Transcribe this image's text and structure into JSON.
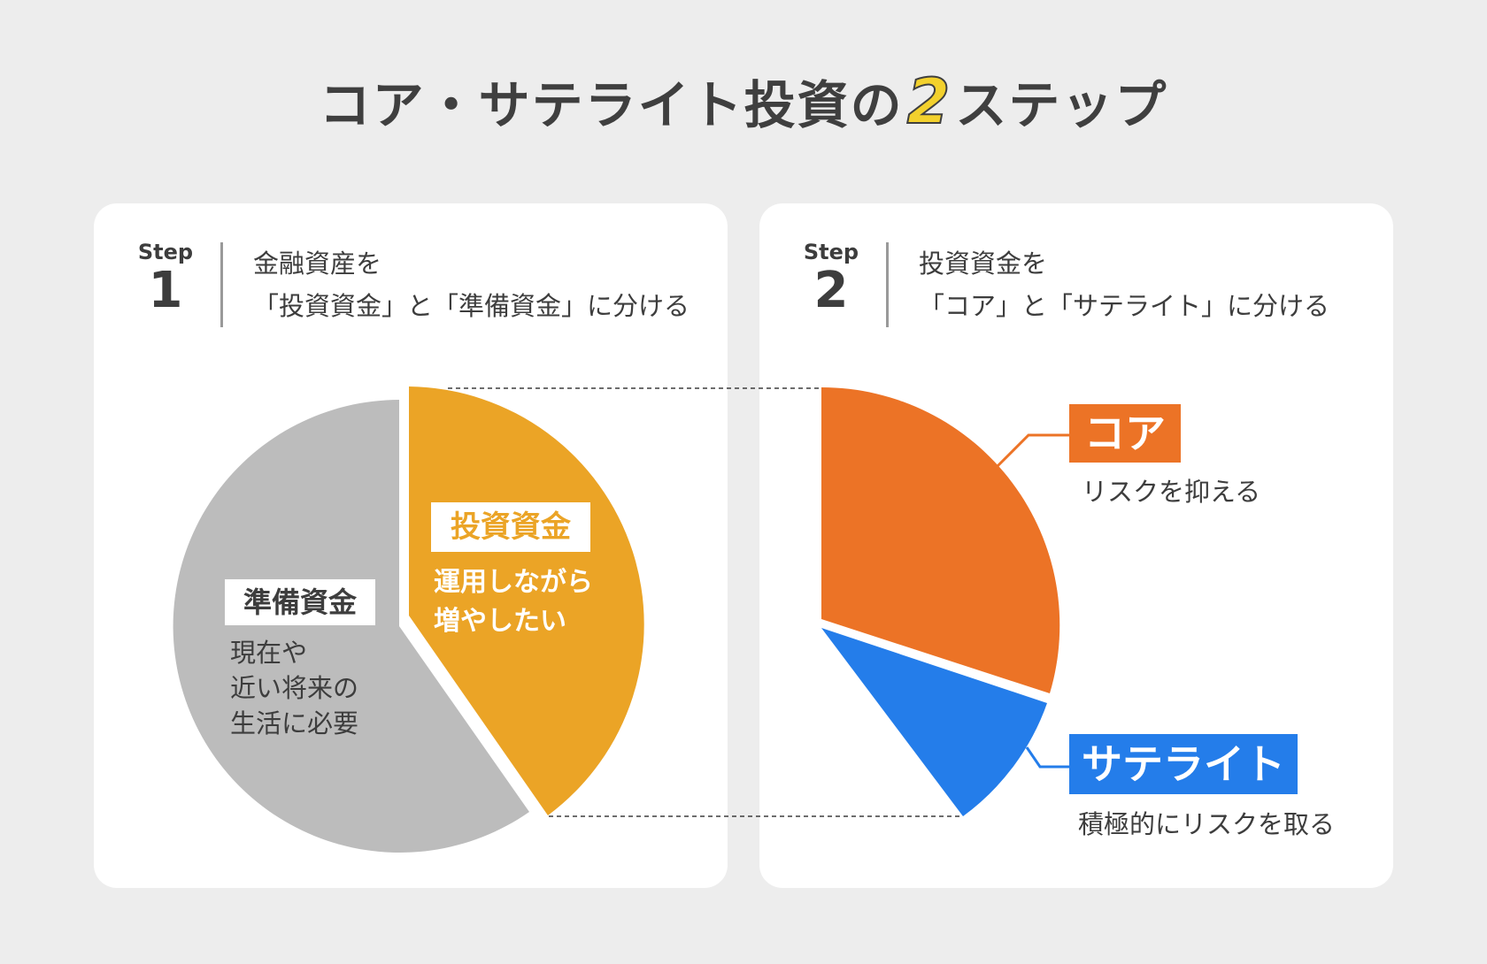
{
  "title": {
    "prefix": "コア・サテライト投資の",
    "number": "2",
    "suffix": "ステップ"
  },
  "step1": {
    "step_label": "Step",
    "step_number": "1",
    "desc_line1": "金融資産を",
    "desc_line2": "「投資資金」と「準備資金」に分ける",
    "invest": {
      "label": "投資資金",
      "desc_line1": "運用しながら",
      "desc_line2": "増やしたい"
    },
    "reserve": {
      "label": "準備資金",
      "desc_line1": "現在や",
      "desc_line2": "近い将来の",
      "desc_line3": "生活に必要"
    }
  },
  "step2": {
    "step_label": "Step",
    "step_number": "2",
    "desc_line1": "投資資金を",
    "desc_line2": "「コア」と「サテライト」に分ける",
    "core": {
      "label": "コア",
      "desc": "リスクを抑える"
    },
    "satellite": {
      "label": "サテライト",
      "desc": "積極的にリスクを取る"
    }
  },
  "colors": {
    "background": "#ededed",
    "card": "#ffffff",
    "invest": "#eba426",
    "reserve": "#bcbcbc",
    "core": "#ec7326",
    "satellite": "#247dea",
    "text": "#3d3d3d",
    "title_number": "#f3d12d"
  }
}
